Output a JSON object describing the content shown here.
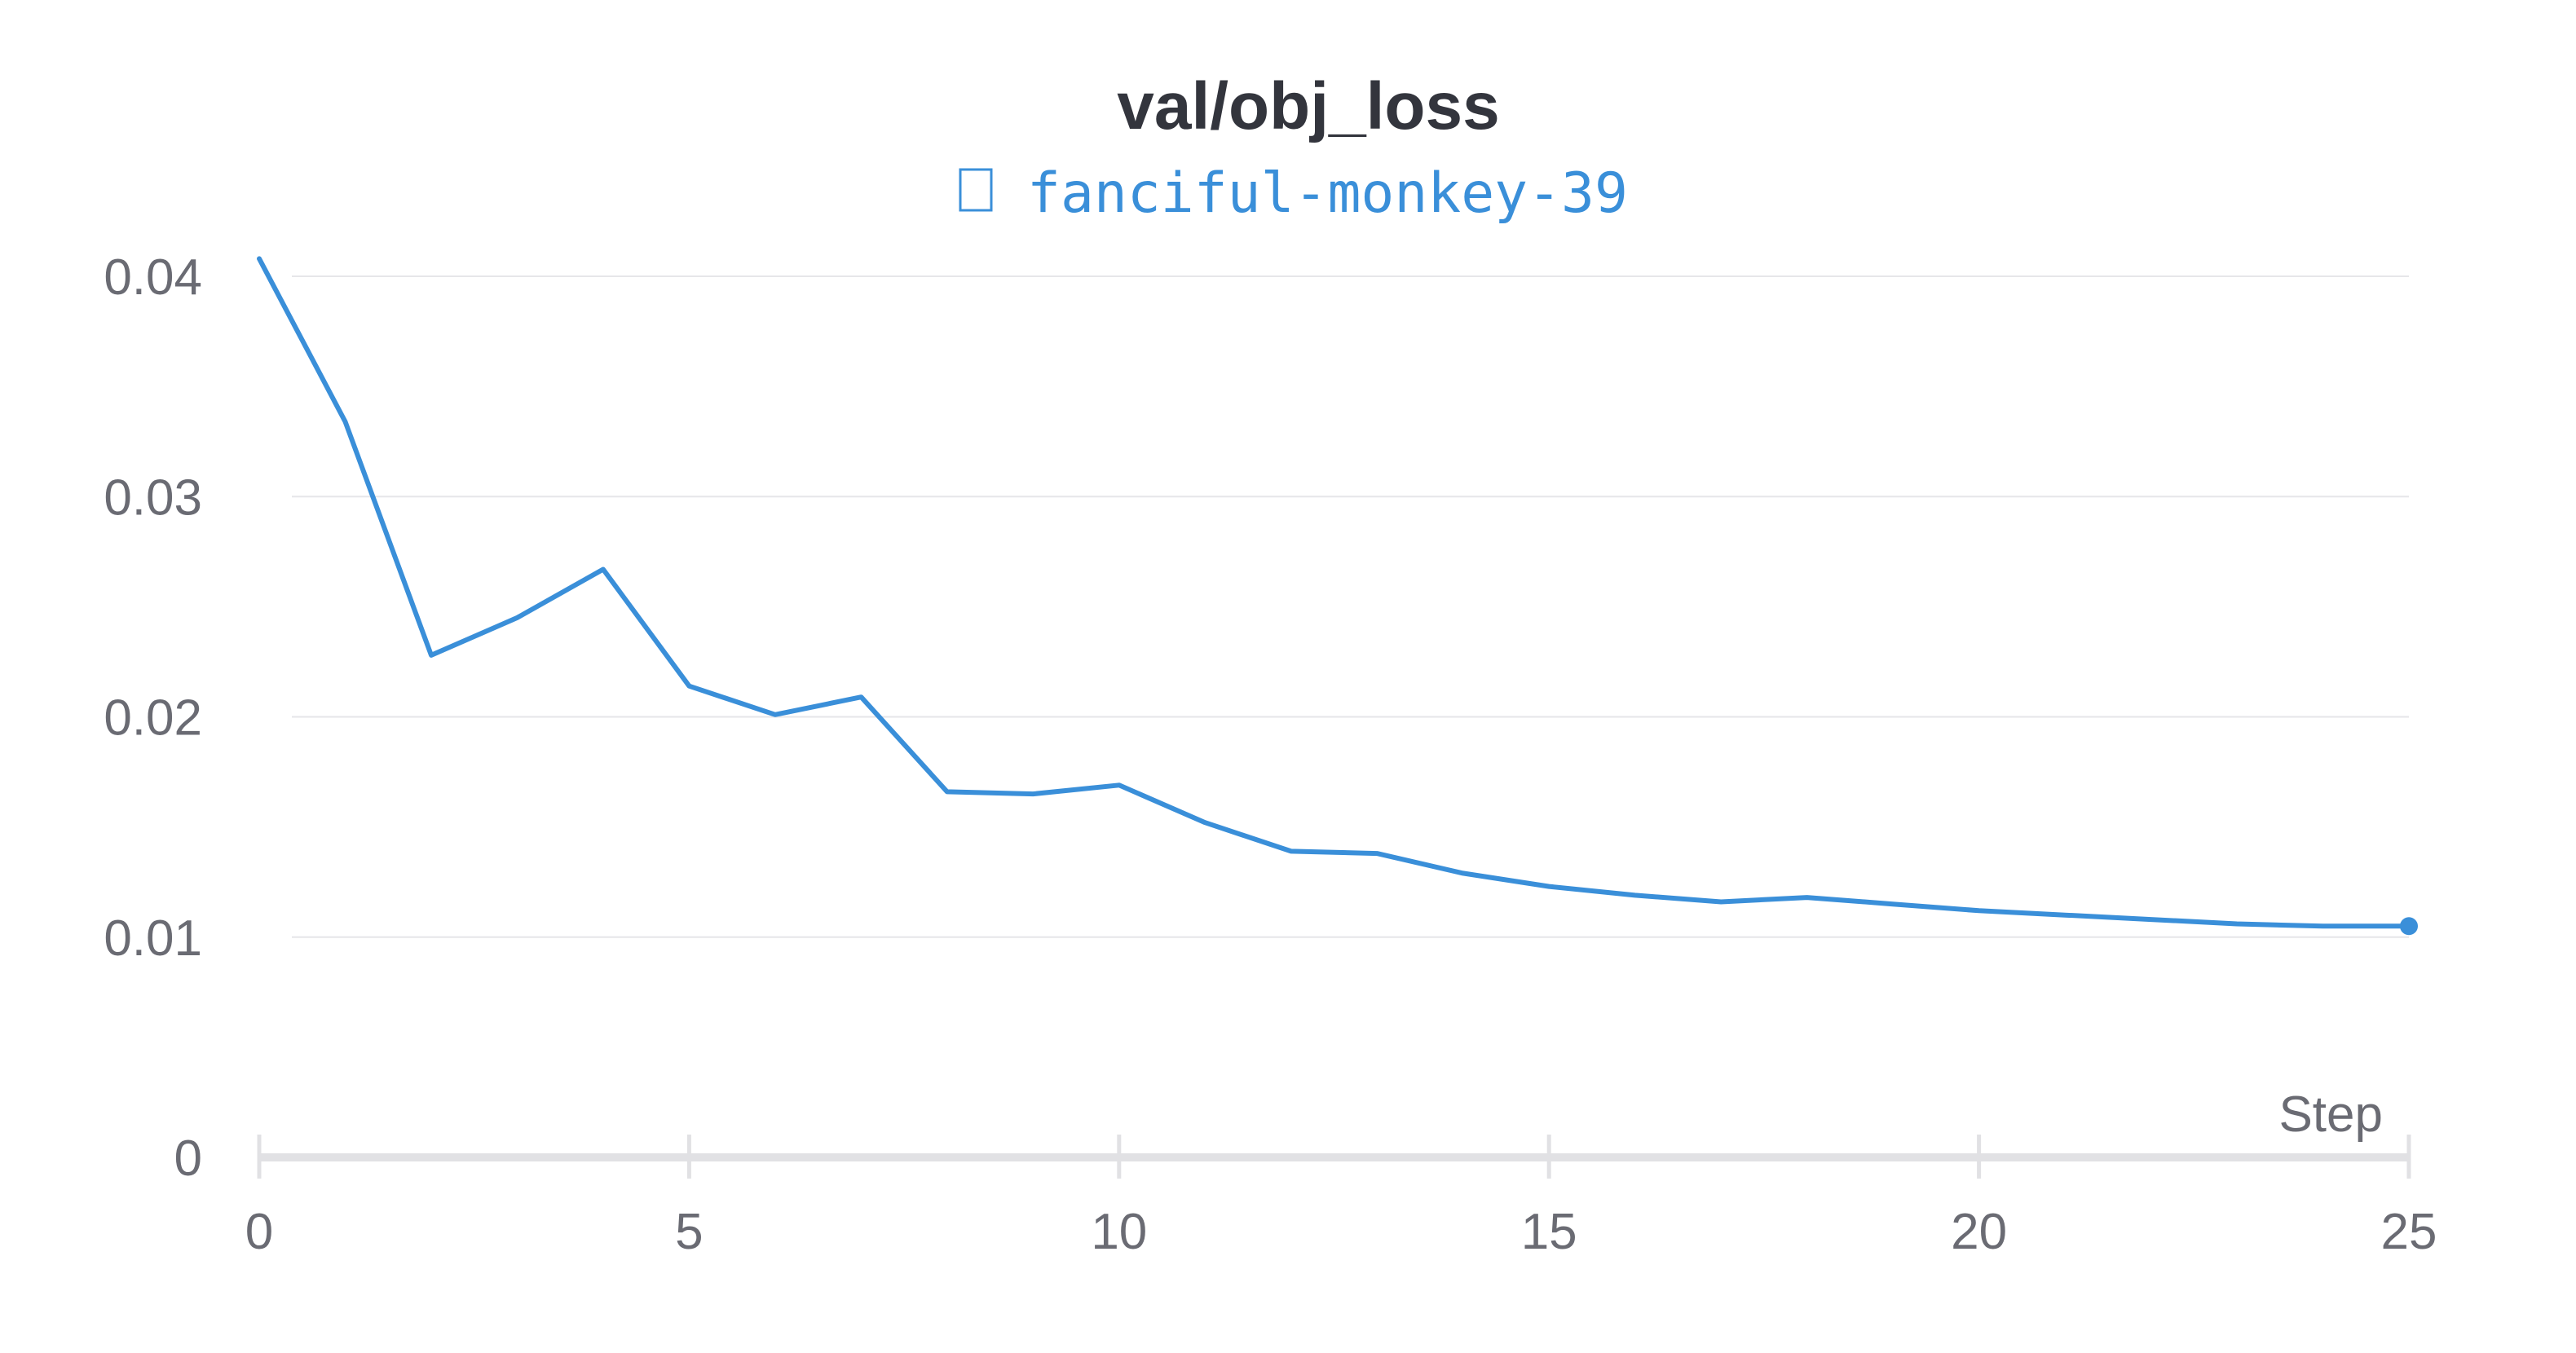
{
  "chart_data": {
    "type": "line",
    "title": "val/obj_loss",
    "xlabel": "Step",
    "ylabel": "",
    "xlim": [
      0,
      25
    ],
    "ylim": [
      0,
      0.042
    ],
    "x_ticks": [
      0,
      5,
      10,
      15,
      20,
      25
    ],
    "y_ticks": [
      0,
      0.01,
      0.02,
      0.03,
      0.04
    ],
    "x_tick_labels": [
      "0",
      "5",
      "10",
      "15",
      "20",
      "25"
    ],
    "y_tick_labels": [
      "0",
      "0.01",
      "0.02",
      "0.03",
      "0.04"
    ],
    "grid": true,
    "legend_position": "top-center",
    "series": [
      {
        "name": "fanciful-monkey-39",
        "color": "#3a8fd9",
        "x": [
          0,
          1,
          2,
          3,
          4,
          5,
          6,
          7,
          8,
          9,
          10,
          11,
          12,
          13,
          14,
          15,
          16,
          17,
          18,
          19,
          20,
          21,
          22,
          23,
          24,
          25
        ],
        "values": [
          0.0408,
          0.0334,
          0.0228,
          0.0245,
          0.0267,
          0.0214,
          0.0201,
          0.0209,
          0.0166,
          0.0165,
          0.0169,
          0.0152,
          0.0139,
          0.0138,
          0.0129,
          0.0123,
          0.0119,
          0.0116,
          0.0118,
          0.0115,
          0.0112,
          0.011,
          0.0108,
          0.0106,
          0.0105,
          0.0105
        ],
        "last_point_marker": true
      }
    ]
  },
  "legend": {
    "icon": "square-outline-icon"
  },
  "colors": {
    "line": "#3a8fd9",
    "grid": "#e6e6e9",
    "axis": "#e1e1e4",
    "title": "#33353d",
    "tick_text": "#6a6b73"
  }
}
